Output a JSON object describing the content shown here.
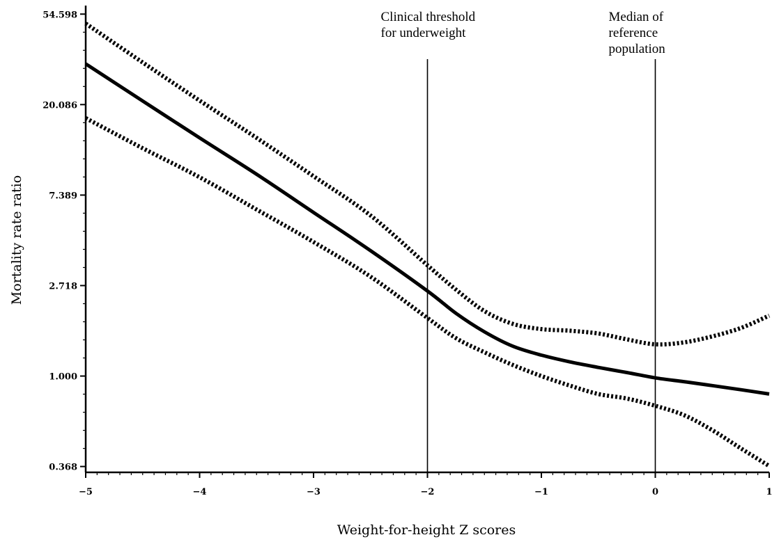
{
  "chart_data": {
    "type": "line",
    "xlabel": "Weight-for-height Z scores",
    "ylabel": "Mortality rate ratio",
    "x_ticks": [
      -5,
      -4,
      -3,
      -2,
      -1,
      0,
      1
    ],
    "x_tick_labels": [
      "−5",
      "−4",
      "−3",
      "−2",
      "−1",
      "0",
      "1"
    ],
    "y_ticks": [
      0.368,
      1.0,
      2.718,
      7.389,
      20.086,
      54.598
    ],
    "y_tick_labels": [
      "0.368",
      "1.000",
      "2.718",
      "7.389",
      "20.086",
      "54.598"
    ],
    "y_scale": "log",
    "xlim": [
      -5,
      1
    ],
    "ylim": [
      0.345,
      60
    ],
    "grid": false,
    "series": [
      {
        "style": "solid",
        "x": [
          -5,
          -4.5,
          -4,
          -3.5,
          -3,
          -2.5,
          -2,
          -1.75,
          -1.5,
          -1.25,
          -1,
          -0.75,
          -0.5,
          -0.25,
          0,
          0.25,
          0.5,
          0.75,
          1
        ],
        "y": [
          31.5,
          20.9,
          13.9,
          9.3,
          6.1,
          4.0,
          2.56,
          2.0,
          1.63,
          1.39,
          1.26,
          1.17,
          1.1,
          1.04,
          0.98,
          0.94,
          0.9,
          0.86,
          0.82
        ]
      },
      {
        "style": "dotted",
        "x": [
          -5,
          -4.5,
          -4,
          -3.5,
          -3,
          -2.5,
          -2,
          -1.75,
          -1.5,
          -1.25,
          -1,
          -0.75,
          -0.5,
          -0.25,
          0,
          0.25,
          0.5,
          0.75,
          1
        ],
        "y": [
          49.2,
          32.0,
          21.0,
          13.9,
          9.1,
          5.9,
          3.4,
          2.6,
          2.05,
          1.78,
          1.68,
          1.65,
          1.6,
          1.5,
          1.42,
          1.45,
          1.55,
          1.7,
          1.95
        ]
      },
      {
        "style": "dotted",
        "x": [
          -5,
          -4.5,
          -4,
          -3.5,
          -3,
          -2.5,
          -2,
          -1.75,
          -1.5,
          -1.25,
          -1,
          -0.75,
          -0.5,
          -0.25,
          0,
          0.25,
          0.5,
          0.75,
          1
        ],
        "y": [
          17.3,
          12.4,
          9.0,
          6.3,
          4.4,
          3.0,
          1.9,
          1.52,
          1.3,
          1.13,
          1.0,
          0.9,
          0.82,
          0.78,
          0.72,
          0.65,
          0.55,
          0.45,
          0.37
        ]
      }
    ],
    "annotations": [
      {
        "x": -2,
        "lines": [
          "Clinical threshold",
          "for underweight"
        ]
      },
      {
        "x": 0,
        "lines": [
          "Median of",
          "reference",
          "population"
        ]
      }
    ]
  }
}
